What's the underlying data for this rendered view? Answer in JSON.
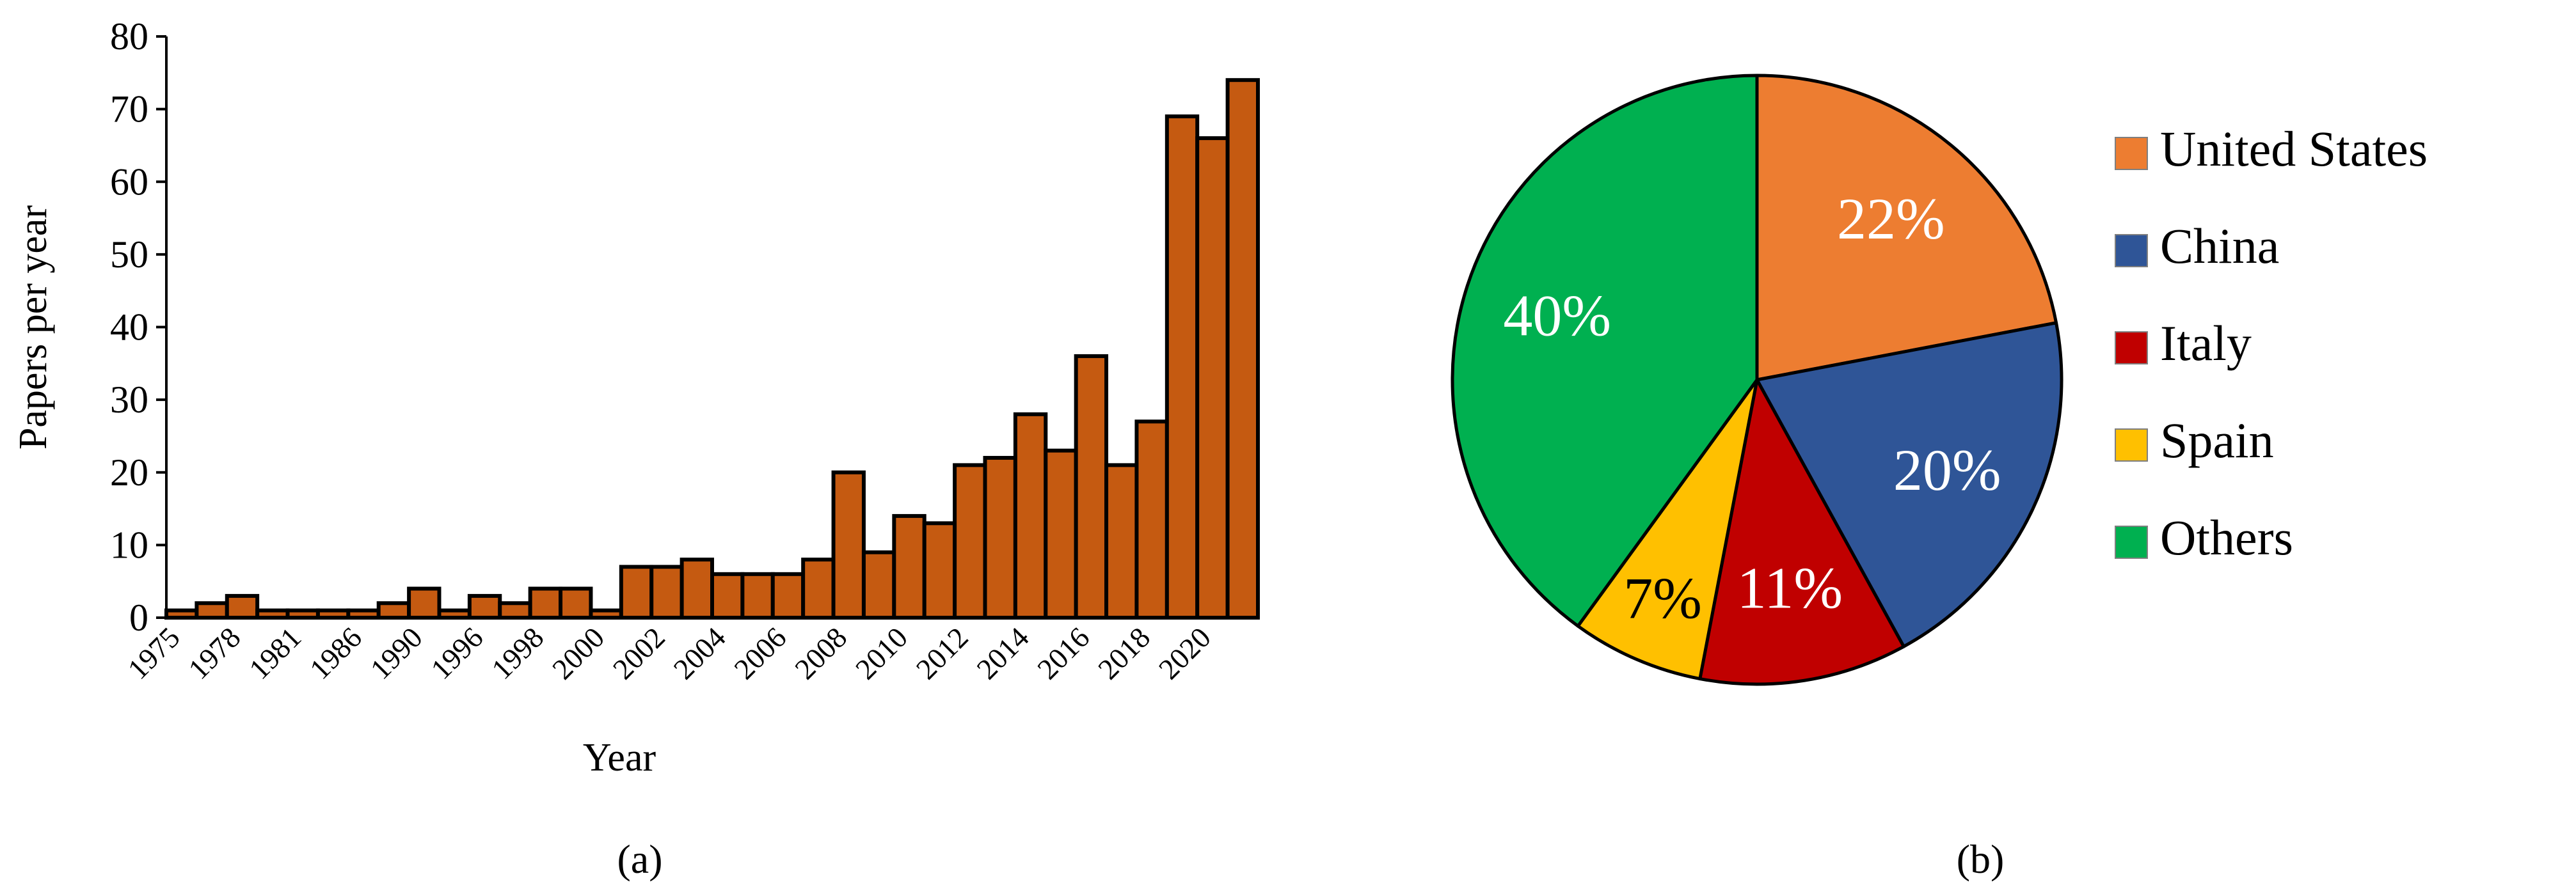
{
  "chart_data": [
    {
      "panel_label": "(a)",
      "type": "bar",
      "xlabel": "Year",
      "ylabel": "Papers per year",
      "ylim": [
        0,
        80
      ],
      "yticks": [
        0,
        10,
        20,
        30,
        40,
        50,
        60,
        70,
        80
      ],
      "x_tick_labels": [
        "1975",
        "1978",
        "1981",
        "1986",
        "1990",
        "1996",
        "1998",
        "2000",
        "2002",
        "2004",
        "2006",
        "2008",
        "2010",
        "2012",
        "2014",
        "2016",
        "2018",
        "2020"
      ],
      "values": [
        1,
        2,
        3,
        1,
        1,
        1,
        1,
        2,
        4,
        1,
        3,
        2,
        4,
        4,
        1,
        7,
        7,
        8,
        6,
        6,
        6,
        8,
        20,
        9,
        14,
        13,
        21,
        22,
        28,
        23,
        36,
        21,
        27,
        69,
        66,
        74
      ],
      "bar_color": "#C55A11",
      "grid": false,
      "legend": false
    },
    {
      "panel_label": "(b)",
      "type": "pie",
      "slices": [
        {
          "name": "United States",
          "label": "22%",
          "value": 22,
          "color": "#ED7D31"
        },
        {
          "name": "China",
          "label": "20%",
          "value": 20,
          "color": "#2F5597"
        },
        {
          "name": "Italy",
          "label": "11%",
          "value": 11,
          "color": "#C00000"
        },
        {
          "name": "Spain",
          "label": "7%",
          "value": 7,
          "color": "#FFC000"
        },
        {
          "name": "Others",
          "label": "40%",
          "value": 40,
          "color": "#00B050"
        }
      ],
      "legend": "right"
    }
  ]
}
